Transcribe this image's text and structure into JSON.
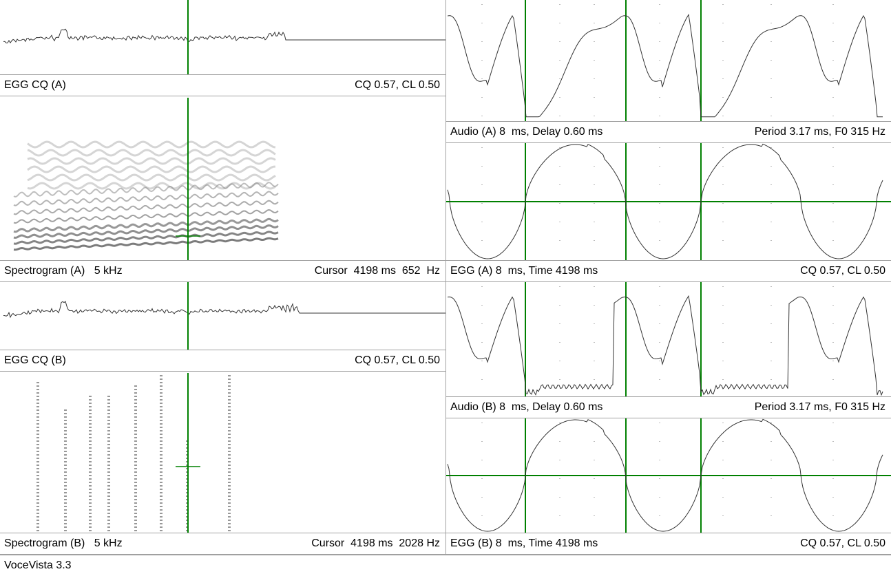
{
  "left_panels": [
    {
      "left": "EGG CQ (A)",
      "right": "CQ 0.57, CL 0.50"
    },
    {
      "left": "Spectrogram (A)   5 kHz",
      "right": "Cursor  4198 ms  652  Hz"
    },
    {
      "left": "EGG CQ (B)",
      "right": "CQ 0.57, CL 0.50"
    },
    {
      "left": "Spectrogram (B)   5 kHz",
      "right": "Cursor  4198 ms  2028 Hz"
    }
  ],
  "right_panels": [
    {
      "left": "Audio (A) 8  ms, Delay 0.60 ms",
      "right": "Period 3.17 ms, F0 315 Hz"
    },
    {
      "left": "EGG (A) 8  ms, Time 4198 ms",
      "right": "CQ 0.57, CL 0.50"
    },
    {
      "left": "Audio (B) 8  ms, Delay 0.60 ms",
      "right": "Period 3.17 ms, F0 315 Hz"
    },
    {
      "left": "EGG (B) 8  ms, Time 4198 ms",
      "right": "CQ 0.57, CL 0.50"
    }
  ],
  "status": "VoceVista 3.3"
}
